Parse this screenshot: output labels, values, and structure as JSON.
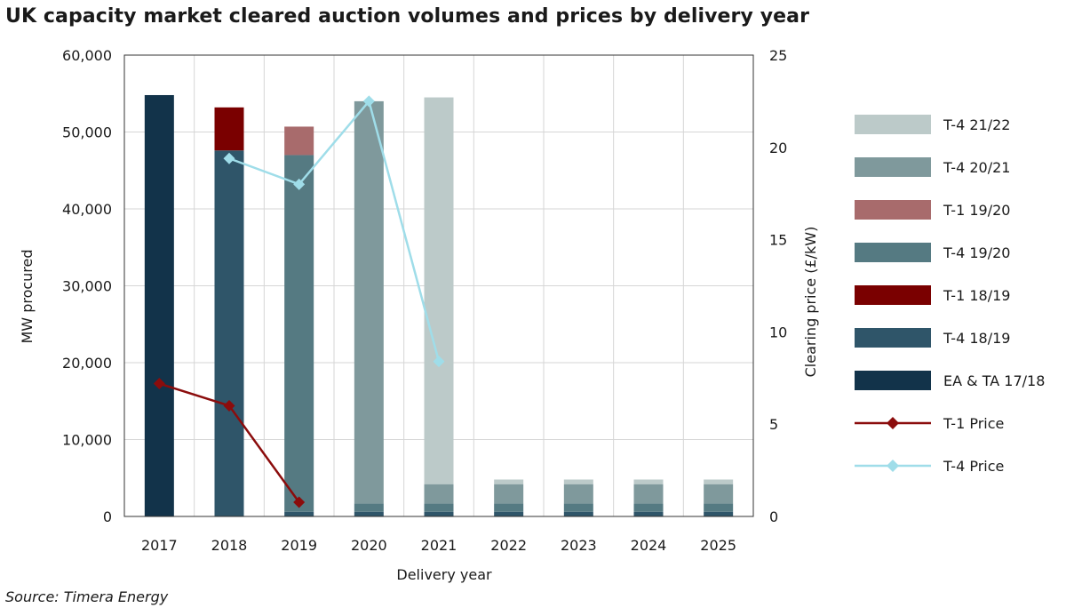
{
  "title": "UK capacity market cleared auction volumes and prices by delivery year",
  "source": "Source: Timera Energy",
  "colors": {
    "EA & TA 17/18": "#12334a",
    "T-4 18/19": "#2f5569",
    "T-1 18/19": "#7a0000",
    "T-4 19/20": "#557a82",
    "T-1 19/20": "#a86b6c",
    "T-4 20/21": "#7f999c",
    "T-4 21/22": "#bccac9",
    "T-1 Price": "#8b0c0c",
    "T-4 Price": "#9fdde9"
  },
  "chart_data": {
    "type": "bar",
    "stacked": true,
    "title": "UK capacity market cleared auction volumes and prices by delivery year",
    "xlabel": "Delivery year",
    "ylabel": "MW procured",
    "y2label": "Clearing price (£/kW)",
    "ylim": [
      0,
      60000
    ],
    "y2lim": [
      0,
      25
    ],
    "yticks": [
      "60,000",
      "50,000",
      "40,000",
      "30,000",
      "20,000",
      "10,000",
      "0"
    ],
    "y2ticks": [
      "25",
      "20",
      "15",
      "10",
      "5",
      "0"
    ],
    "grid": true,
    "legend_position": "right",
    "categories": [
      "2017",
      "2018",
      "2019",
      "2020",
      "2021",
      "2022",
      "2023",
      "2024",
      "2025"
    ],
    "series": [
      {
        "name": "EA & TA 17/18",
        "values": [
          54800,
          0,
          0,
          0,
          0,
          0,
          0,
          0,
          0
        ]
      },
      {
        "name": "T-4 18/19",
        "values": [
          0,
          47600,
          600,
          600,
          600,
          600,
          600,
          600,
          600
        ]
      },
      {
        "name": "T-1 18/19",
        "values": [
          0,
          5600,
          0,
          0,
          0,
          0,
          0,
          0,
          0
        ]
      },
      {
        "name": "T-4 19/20",
        "values": [
          0,
          0,
          46400,
          1100,
          1100,
          1100,
          1100,
          1100,
          1100
        ]
      },
      {
        "name": "T-1 19/20",
        "values": [
          0,
          0,
          3700,
          0,
          0,
          0,
          0,
          0,
          0
        ]
      },
      {
        "name": "T-4 20/21",
        "values": [
          0,
          0,
          0,
          52300,
          2500,
          2500,
          2500,
          2500,
          2500
        ]
      },
      {
        "name": "T-4 21/22",
        "values": [
          0,
          0,
          0,
          0,
          50300,
          600,
          600,
          600,
          600
        ]
      }
    ],
    "lines": [
      {
        "name": "T-1 Price",
        "axis": "right",
        "marker": "diamond",
        "points": [
          [
            "2017",
            7.2
          ],
          [
            "2018",
            6.0
          ],
          [
            "2019",
            0.77
          ]
        ]
      },
      {
        "name": "T-4 Price",
        "axis": "right",
        "marker": "diamond",
        "points": [
          [
            "2018",
            19.4
          ],
          [
            "2019",
            18.0
          ],
          [
            "2020",
            22.5
          ],
          [
            "2021",
            8.4
          ]
        ]
      }
    ],
    "legend": [
      "T-4 21/22",
      "T-4 20/21",
      "T-1 19/20",
      "T-4 19/20",
      "T-1 18/19",
      "T-4 18/19",
      "EA & TA 17/18",
      "T-1 Price",
      "T-4 Price"
    ]
  }
}
